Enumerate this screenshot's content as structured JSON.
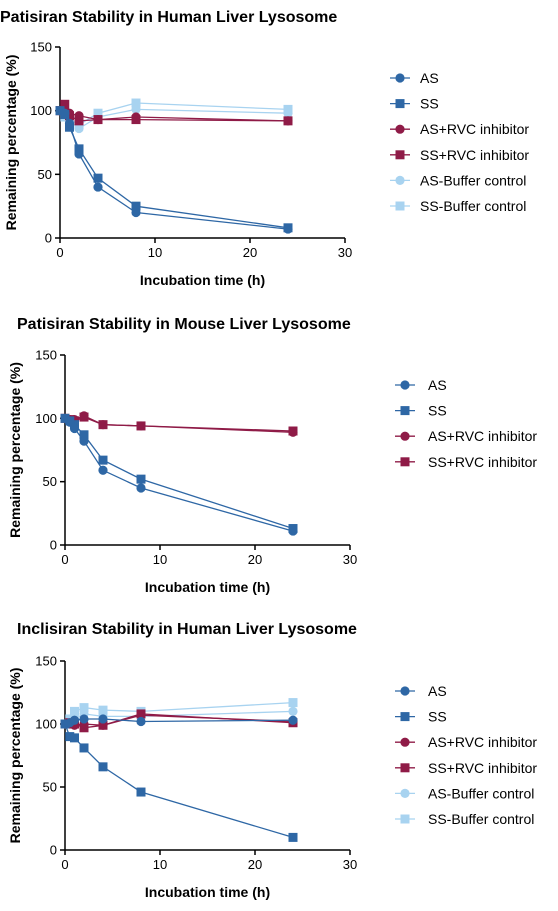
{
  "colors": {
    "AS": "#2e67a5",
    "SS": "#2e67a5",
    "AS+RVC inhibitor": "#8f1b47",
    "SS+RVC inhibitor": "#8f1b47",
    "AS-Buffer control": "#a8d3f0",
    "SS-Buffer control": "#a8d3f0"
  },
  "chart_data": [
    {
      "type": "line",
      "title": "Patisiran Stability in Human Liver Lysosome",
      "xlabel": "Incubation time (h)",
      "ylabel": "Remaining percentage (%)",
      "xlim": [
        0,
        30
      ],
      "ylim": [
        0,
        150
      ],
      "xticks": [
        0,
        10,
        20,
        30
      ],
      "yticks": [
        0,
        50,
        100,
        150
      ],
      "grid": false,
      "legend": "right",
      "series": [
        {
          "name": "AS",
          "marker": "circle",
          "x": [
            0,
            0.5,
            1,
            2,
            4,
            8,
            24
          ],
          "y": [
            100,
            98,
            90,
            66,
            40,
            20,
            7
          ]
        },
        {
          "name": "SS",
          "marker": "square",
          "x": [
            0,
            0.5,
            1,
            2,
            4,
            8,
            24
          ],
          "y": [
            100,
            97,
            87,
            70,
            47,
            25,
            8
          ]
        },
        {
          "name": "AS+RVC inhibitor",
          "marker": "circle",
          "x": [
            0,
            0.5,
            1,
            2,
            4,
            8,
            24
          ],
          "y": [
            100,
            100,
            98,
            96,
            93,
            95,
            92
          ]
        },
        {
          "name": "SS+RVC inhibitor",
          "marker": "square",
          "x": [
            0,
            0.5,
            1,
            2,
            4,
            8,
            24
          ],
          "y": [
            100,
            105,
            96,
            92,
            93,
            93,
            92
          ]
        },
        {
          "name": "AS-Buffer control",
          "marker": "circle",
          "x": [
            0,
            0.5,
            1,
            2,
            4,
            8,
            24
          ],
          "y": [
            100,
            98,
            92,
            86,
            95,
            101,
            98
          ]
        },
        {
          "name": "SS-Buffer control",
          "marker": "square",
          "x": [
            0,
            0.5,
            1,
            2,
            4,
            8,
            24
          ],
          "y": [
            100,
            95,
            93,
            89,
            98,
            106,
            101
          ]
        }
      ]
    },
    {
      "type": "line",
      "title": "Patisiran Stability in Mouse Liver Lysosome",
      "xlabel": "Incubation time (h)",
      "ylabel": "Remaining percentage (%)",
      "xlim": [
        0,
        30
      ],
      "ylim": [
        0,
        150
      ],
      "xticks": [
        0,
        10,
        20,
        30
      ],
      "yticks": [
        0,
        50,
        100,
        150
      ],
      "grid": false,
      "legend": "right",
      "series": [
        {
          "name": "AS",
          "marker": "circle",
          "x": [
            0,
            0.5,
            1,
            2,
            4,
            8,
            24
          ],
          "y": [
            100,
            97,
            92,
            82,
            59,
            45,
            11
          ]
        },
        {
          "name": "SS",
          "marker": "square",
          "x": [
            0,
            0.5,
            1,
            2,
            4,
            8,
            24
          ],
          "y": [
            100,
            98,
            95,
            87,
            67,
            52,
            13
          ]
        },
        {
          "name": "AS+RVC inhibitor",
          "marker": "circle",
          "x": [
            0,
            0.5,
            1,
            2,
            4,
            8,
            24
          ],
          "y": [
            100,
            99,
            99,
            102,
            95,
            94,
            89
          ]
        },
        {
          "name": "SS+RVC inhibitor",
          "marker": "square",
          "x": [
            0,
            0.5,
            1,
            2,
            4,
            8,
            24
          ],
          "y": [
            100,
            99,
            98,
            101,
            95,
            94,
            90
          ]
        }
      ]
    },
    {
      "type": "line",
      "title": "Inclisiran Stability in Human Liver Lysosome",
      "xlabel": "Incubation time (h)",
      "ylabel": "Remaining percentage (%)",
      "xlim": [
        0,
        30
      ],
      "ylim": [
        0,
        150
      ],
      "xticks": [
        0,
        10,
        20,
        30
      ],
      "yticks": [
        0,
        50,
        100,
        150
      ],
      "grid": false,
      "legend": "right",
      "series": [
        {
          "name": "AS",
          "marker": "circle",
          "x": [
            0,
            0.5,
            1,
            2,
            4,
            8,
            24
          ],
          "y": [
            100,
            101,
            103,
            104,
            104,
            102,
            103
          ]
        },
        {
          "name": "SS",
          "marker": "square",
          "x": [
            0,
            0.5,
            1,
            2,
            4,
            8,
            24
          ],
          "y": [
            100,
            90,
            89,
            81,
            66,
            46,
            10
          ]
        },
        {
          "name": "AS+RVC inhibitor",
          "marker": "circle",
          "x": [
            0,
            0.5,
            1,
            2,
            4,
            8,
            24
          ],
          "y": [
            100,
            100,
            99,
            100,
            99,
            107,
            102
          ]
        },
        {
          "name": "SS+RVC inhibitor",
          "marker": "square",
          "x": [
            0,
            0.5,
            1,
            2,
            4,
            8,
            24
          ],
          "y": [
            100,
            101,
            100,
            97,
            99,
            108,
            101
          ]
        },
        {
          "name": "AS-Buffer control",
          "marker": "circle",
          "x": [
            0,
            0.5,
            1,
            2,
            4,
            8,
            24
          ],
          "y": [
            100,
            103,
            104,
            108,
            106,
            106,
            110
          ]
        },
        {
          "name": "SS-Buffer control",
          "marker": "square",
          "x": [
            0,
            0.5,
            1,
            2,
            4,
            8,
            24
          ],
          "y": [
            100,
            104,
            110,
            113,
            111,
            110,
            117
          ]
        }
      ]
    }
  ]
}
